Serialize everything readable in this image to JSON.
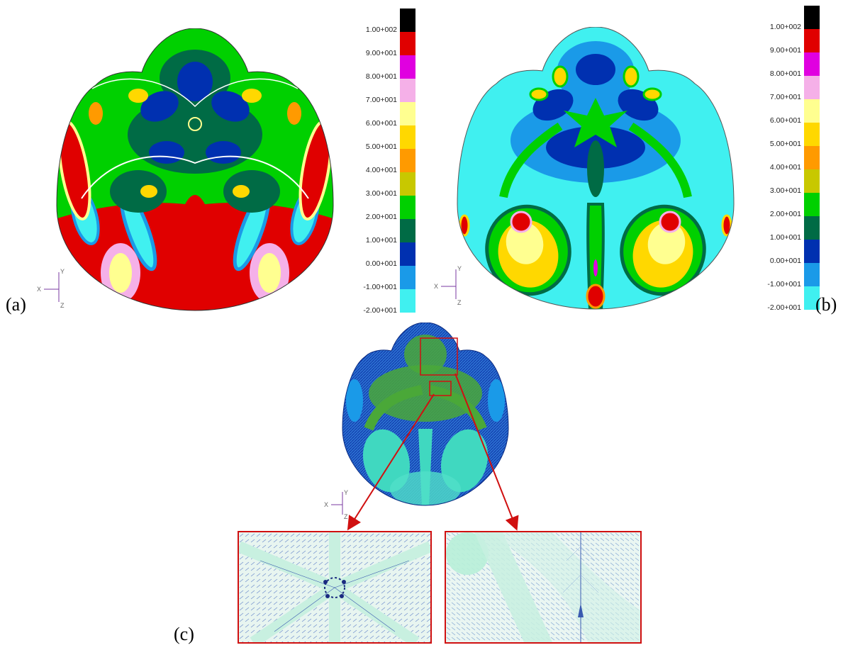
{
  "panels": {
    "a": {
      "label": "(a)"
    },
    "b": {
      "label": "(b)"
    },
    "c": {
      "label": "(c)"
    }
  },
  "legend": {
    "ticks": [
      "1.00+002",
      "9.00+001",
      "8.00+001",
      "7.00+001",
      "6.00+001",
      "5.00+001",
      "4.00+001",
      "3.00+001",
      "2.00+001",
      "1.00+001",
      "0.00+001",
      "-1.00+001",
      "-2.00+001"
    ],
    "colors": [
      "#000000",
      "#e00000",
      "#e000e0",
      "#f5b0e8",
      "#ffff90",
      "#ffd800",
      "#ff9a00",
      "#c8c800",
      "#00d000",
      "#006b45",
      "#0030b0",
      "#1a9ae8",
      "#40f0f0"
    ]
  },
  "axes": {
    "x": "X",
    "y": "Y",
    "z": "Z"
  },
  "colors": {
    "zoom_border": "#d01010",
    "arrow": "#d01010"
  }
}
